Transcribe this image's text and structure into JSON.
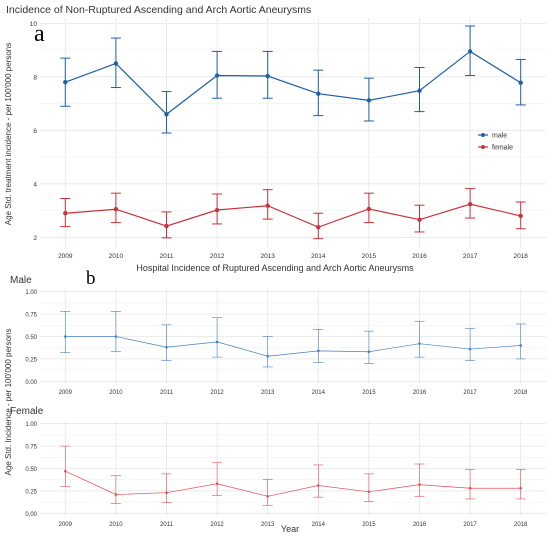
{
  "colors": {
    "male": "#1f5fa8",
    "female": "#c8323c",
    "male_b": "#4a7fc0",
    "female_b": "#e0505a",
    "grid": "#e6e6e6"
  },
  "chart_data": [
    {
      "type": "line",
      "panel_label": "a",
      "title": "Incidence of Non-Ruptured Ascending and Arch Aortic Aneurysms",
      "xlabel": "",
      "ylabel": "Age Std. treatment incidence - per 100'000 persons",
      "categories": [
        "2009",
        "2010",
        "2011",
        "2012",
        "2013",
        "2014",
        "2015",
        "2016",
        "2017",
        "2018"
      ],
      "ylim": [
        1.6,
        10.2
      ],
      "yticks": [
        2,
        4,
        6,
        8,
        10
      ],
      "grid": true,
      "legend_position": "right",
      "series": [
        {
          "name": "male",
          "values": [
            7.8,
            8.5,
            6.6,
            8.05,
            8.03,
            7.37,
            7.12,
            7.48,
            8.95,
            7.78
          ],
          "lower": [
            6.9,
            7.6,
            5.9,
            7.2,
            7.2,
            6.55,
            6.35,
            6.7,
            8.05,
            6.95
          ],
          "upper": [
            8.7,
            9.45,
            7.45,
            8.95,
            8.95,
            8.25,
            7.95,
            8.35,
            9.9,
            8.65
          ]
        },
        {
          "name": "female",
          "values": [
            2.9,
            3.05,
            2.42,
            3.02,
            3.18,
            2.38,
            3.06,
            2.66,
            3.24,
            2.8
          ],
          "lower": [
            2.4,
            2.55,
            1.98,
            2.5,
            2.68,
            1.95,
            2.55,
            2.2,
            2.72,
            2.32
          ],
          "upper": [
            3.45,
            3.65,
            2.95,
            3.62,
            3.78,
            2.9,
            3.65,
            3.2,
            3.82,
            3.32
          ]
        }
      ]
    },
    {
      "type": "line",
      "panel_label": "b",
      "title": "Hospital Incidence of Ruptured Ascending and Arch Aortic Aneurysms",
      "subtitle": "Male",
      "xlabel": "",
      "ylabel": "",
      "categories": [
        "2009",
        "2010",
        "2011",
        "2012",
        "2013",
        "2014",
        "2015",
        "2016",
        "2017",
        "2018"
      ],
      "ylim": [
        -0.03,
        1.03
      ],
      "yticks": [
        "0.00",
        "0.25",
        "0.50",
        "0.75",
        "1.00"
      ],
      "grid": true,
      "series": [
        {
          "name": "",
          "values": [
            0.5,
            0.5,
            0.38,
            0.44,
            0.28,
            0.34,
            0.33,
            0.42,
            0.36,
            0.4
          ],
          "lower": [
            0.32,
            0.33,
            0.23,
            0.27,
            0.16,
            0.21,
            0.2,
            0.27,
            0.23,
            0.25
          ],
          "upper": [
            0.78,
            0.78,
            0.63,
            0.71,
            0.5,
            0.58,
            0.56,
            0.67,
            0.59,
            0.64
          ]
        }
      ]
    },
    {
      "type": "line",
      "panel_label": "",
      "title": "",
      "subtitle": "Female",
      "xlabel": "Year",
      "ylabel": "Age Std. Incidence - per 100'000 persons",
      "categories": [
        "2009",
        "2010",
        "2011",
        "2012",
        "2013",
        "2014",
        "2015",
        "2016",
        "2017",
        "2018"
      ],
      "ylim": [
        -0.03,
        1.03
      ],
      "yticks": [
        "0.00",
        "0.25",
        "0.50",
        "0.75",
        "1.00"
      ],
      "grid": true,
      "series": [
        {
          "name": "",
          "values": [
            0.47,
            0.21,
            0.23,
            0.33,
            0.19,
            0.31,
            0.24,
            0.32,
            0.28,
            0.28
          ],
          "lower": [
            0.3,
            0.11,
            0.12,
            0.2,
            0.09,
            0.18,
            0.13,
            0.19,
            0.16,
            0.16
          ],
          "upper": [
            0.75,
            0.42,
            0.44,
            0.57,
            0.38,
            0.54,
            0.44,
            0.55,
            0.49,
            0.49
          ]
        }
      ]
    }
  ]
}
